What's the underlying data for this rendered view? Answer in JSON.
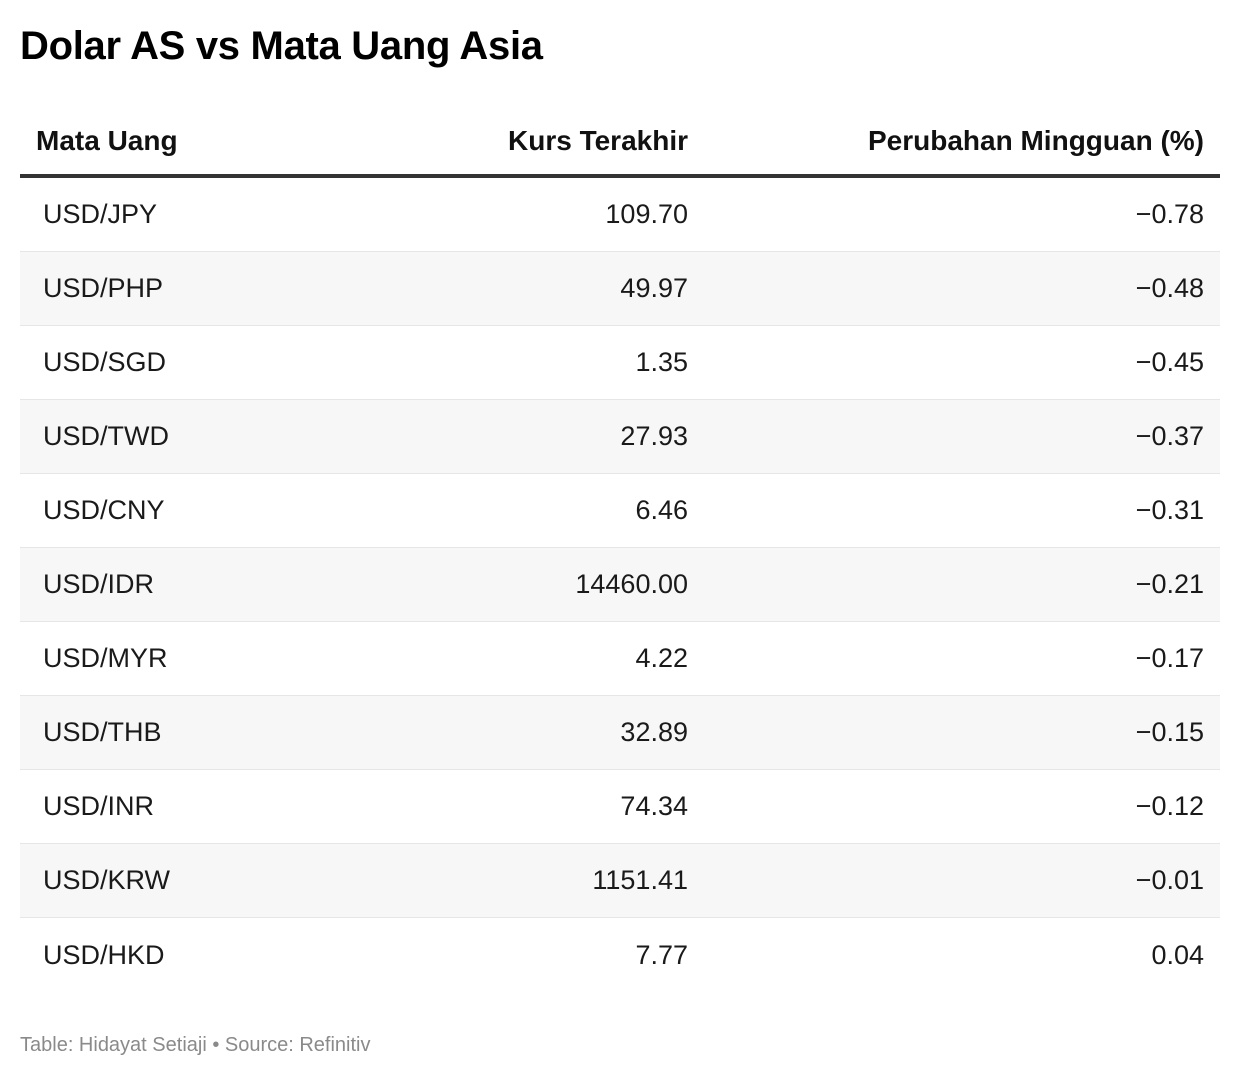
{
  "title": "Dolar AS vs Mata Uang Asia",
  "footer": "Table: Hidayat Setiaji • Source: Refinitiv",
  "chart_data": {
    "type": "table",
    "title": "Dolar AS vs Mata Uang Asia",
    "columns": [
      "Mata Uang",
      "Kurs Terakhir",
      "Perubahan Mingguan (%)"
    ],
    "rows": [
      [
        "USD/JPY",
        "109.70",
        "−0.78"
      ],
      [
        "USD/PHP",
        "49.97",
        "−0.48"
      ],
      [
        "USD/SGD",
        "1.35",
        "−0.45"
      ],
      [
        "USD/TWD",
        "27.93",
        "−0.37"
      ],
      [
        "USD/CNY",
        "6.46",
        "−0.31"
      ],
      [
        "USD/IDR",
        "14460.00",
        "−0.21"
      ],
      [
        "USD/MYR",
        "4.22",
        "−0.17"
      ],
      [
        "USD/THB",
        "32.89",
        "−0.15"
      ],
      [
        "USD/INR",
        "74.34",
        "−0.12"
      ],
      [
        "USD/KRW",
        "1151.41",
        "−0.01"
      ],
      [
        "USD/HKD",
        "7.77",
        "0.04"
      ]
    ]
  }
}
